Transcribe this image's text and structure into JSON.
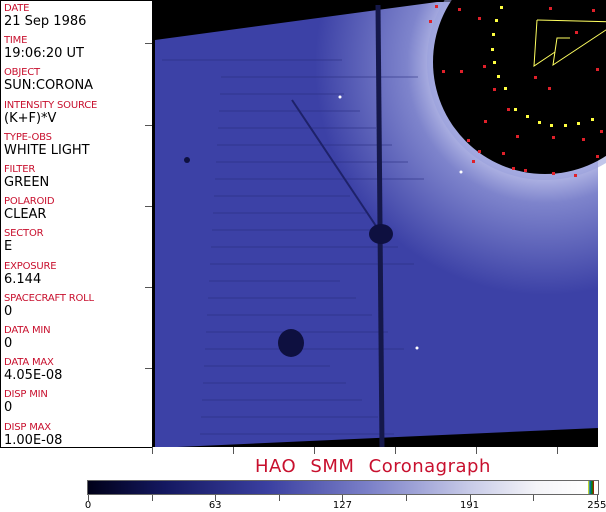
{
  "header_fields": [
    {
      "label": "DATE",
      "value": "21 Sep 1986"
    },
    {
      "label": "TIME",
      "value": "19:06:20 UT"
    },
    {
      "label": "OBJECT",
      "value": "SUN:CORONA"
    },
    {
      "label": "INTENSITY SOURCE",
      "value": "(K+F)*V"
    },
    {
      "label": "TYPE-OBS",
      "value": "WHITE LIGHT"
    },
    {
      "label": "FILTER",
      "value": "GREEN"
    },
    {
      "label": "POLAROID",
      "value": "CLEAR"
    },
    {
      "label": "SECTOR",
      "value": "E"
    },
    {
      "label": "EXPOSURE",
      "value": "6.144"
    },
    {
      "label": "SPACECRAFT ROLL",
      "value": "0"
    },
    {
      "label": "DATA MIN",
      "value": "0"
    },
    {
      "label": "DATA MAX",
      "value": "4.05E-08"
    },
    {
      "label": "DISP MIN",
      "value": "0"
    },
    {
      "label": "DISP MAX",
      "value": "1.00E-08"
    }
  ],
  "title": "HAO  SMM Coronagraph",
  "colorbar": {
    "ticks": [
      "0",
      "63",
      "127",
      "191",
      "255"
    ],
    "colors": {
      "low": "#000018",
      "mid": "#3a3fa0",
      "high": "#ffffff"
    }
  },
  "colors": {
    "label": "#c8102e",
    "image_blue": "#3a3fa0",
    "grid_red": "#e0202a",
    "grid_yellow": "#ffff40"
  }
}
